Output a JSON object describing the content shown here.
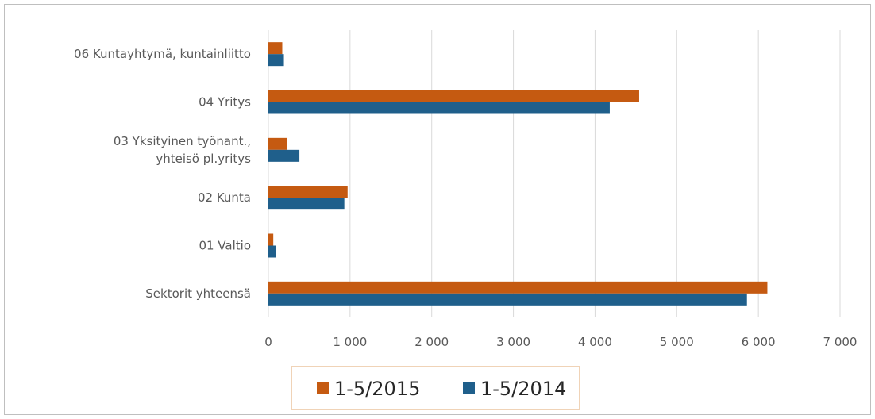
{
  "chart_data": {
    "type": "bar",
    "orientation": "horizontal",
    "categories": [
      "06 Kuntayhtymä, kuntainliitto",
      "04 Yritys",
      "03 Yksityinen työnant., yhteisö pl.yritys",
      "02 Kunta",
      "01 Valtio",
      "Sektorit yhteensä"
    ],
    "category_lines": [
      [
        "06 Kuntayhtymä, kuntainliitto"
      ],
      [
        "04 Yritys"
      ],
      [
        "03 Yksityinen työnant.,",
        "yhteisö pl.yritys"
      ],
      [
        "02 Kunta"
      ],
      [
        "01 Valtio"
      ],
      [
        "Sektorit yhteensä"
      ]
    ],
    "series": [
      {
        "name": "1-5/2015",
        "color": "#c55a11",
        "values": [
          170,
          4540,
          230,
          970,
          60,
          6110
        ]
      },
      {
        "name": "1-5/2014",
        "color": "#1f5f8b",
        "values": [
          190,
          4180,
          380,
          930,
          90,
          5860
        ]
      }
    ],
    "xlim": [
      0,
      7000
    ],
    "x_ticks": [
      0,
      1000,
      2000,
      3000,
      4000,
      5000,
      6000,
      7000
    ],
    "x_tick_labels": [
      "0",
      "1 000",
      "2 000",
      "3 000",
      "4 000",
      "5 000",
      "6 000",
      "7 000"
    ],
    "grid": "vertical",
    "legend_position": "bottom",
    "title": "",
    "xlabel": "",
    "ylabel": ""
  }
}
